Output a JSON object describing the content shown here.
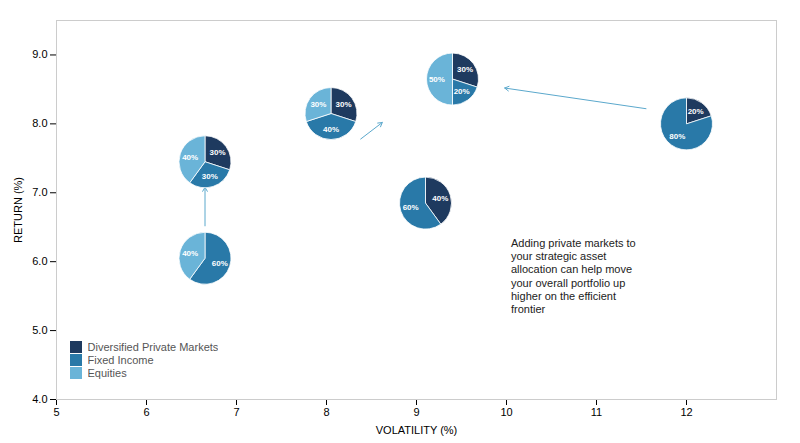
{
  "chart_data": {
    "type": "scatter",
    "marker": "pie",
    "xlabel": "VOLATILITY (%)",
    "ylabel": "RETURN (%)",
    "xlim": [
      5,
      13
    ],
    "ylim": [
      4,
      9.5
    ],
    "xticks": [
      5,
      6,
      7,
      8,
      9,
      10,
      11,
      12
    ],
    "yticks": [
      4,
      5,
      6,
      7,
      8,
      9
    ],
    "grid": false,
    "legend": "lower left",
    "data_labels": true,
    "series": [
      {
        "name": "Diversified Private Markets",
        "color": "#1e3a5f"
      },
      {
        "name": "Fixed Income",
        "color": "#2979a8"
      },
      {
        "name": "Equities",
        "color": "#6ab4d8"
      }
    ],
    "points": [
      {
        "x": 6.65,
        "y": 6.05,
        "values": [
          60,
          40
        ],
        "colors": [
          "#2979a8",
          "#6ab4d8"
        ],
        "value_labels": [
          "60%",
          "40%"
        ]
      },
      {
        "x": 6.65,
        "y": 7.45,
        "values": [
          30,
          30,
          40
        ],
        "colors": [
          "#1e3a5f",
          "#2979a8",
          "#6ab4d8"
        ],
        "value_labels": [
          "30%",
          "30%",
          "40%"
        ]
      },
      {
        "x": 8.05,
        "y": 8.15,
        "values": [
          30,
          40,
          30
        ],
        "colors": [
          "#1e3a5f",
          "#2979a8",
          "#6ab4d8"
        ],
        "value_labels": [
          "30%",
          "40%",
          "30%"
        ]
      },
      {
        "x": 9.1,
        "y": 6.85,
        "values": [
          40,
          60
        ],
        "colors": [
          "#1e3a5f",
          "#2979a8"
        ],
        "value_labels": [
          "40%",
          "60%"
        ]
      },
      {
        "x": 9.4,
        "y": 8.65,
        "values": [
          30,
          20,
          50
        ],
        "colors": [
          "#1e3a5f",
          "#2979a8",
          "#6ab4d8"
        ],
        "value_labels": [
          "30%",
          "20%",
          "50%"
        ]
      },
      {
        "x": 12.0,
        "y": 8.0,
        "values": [
          20,
          80
        ],
        "colors": [
          "#1e3a5f",
          "#2979a8"
        ],
        "value_labels": [
          "20%",
          "80%"
        ]
      }
    ],
    "arrows": [
      {
        "x1": 6.65,
        "y1": 6.52,
        "x2": 6.65,
        "y2": 7.08,
        "color": "#5ba8cc"
      },
      {
        "x1": 8.38,
        "y1": 7.78,
        "x2": 8.62,
        "y2": 8.02,
        "color": "#5ba8cc"
      },
      {
        "x1": 11.55,
        "y1": 8.22,
        "x2": 9.98,
        "y2": 8.52,
        "color": "#5ba8cc"
      }
    ],
    "annotations": [
      {
        "x": 10.05,
        "y": 6.35,
        "text": "Adding private markets to\nyour strategic asset\nallocation can help move\nyour overall portfolio up\nhigher on the efficient\nfrontier",
        "color": "#d5e8f3"
      }
    ]
  }
}
